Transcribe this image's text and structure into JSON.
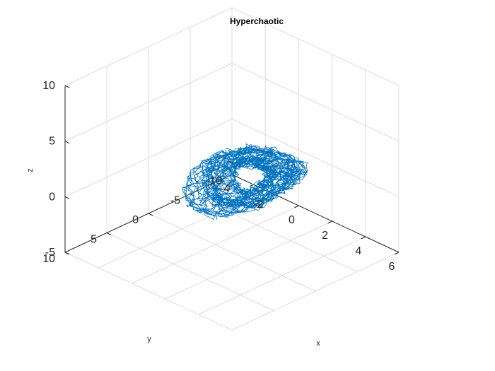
{
  "chart_data": {
    "type": "line3d",
    "title": "Hyperchaotic",
    "xlabel": "x",
    "ylabel": "y",
    "zlabel": "z",
    "xlim": [
      -4,
      6
    ],
    "ylim": [
      -10,
      10
    ],
    "zlim": [
      -5,
      10
    ],
    "x_ticks": [
      "-4",
      "-2",
      "0",
      "2",
      "4",
      "6"
    ],
    "y_ticks": [
      "-10",
      "-5",
      "0",
      "5",
      "10"
    ],
    "z_ticks": [
      "-5",
      "0",
      "5",
      "10"
    ],
    "grid": true,
    "view": "default 3-D (azimuth -37.5°, elevation 30°)",
    "series": [
      {
        "color": "#0072BD",
        "description": "single dense 3-D trajectory of a hyperchaotic attractor, spanning roughly x in [-3, 3], y in [-7, 4], z in [-5, 6]"
      }
    ]
  }
}
